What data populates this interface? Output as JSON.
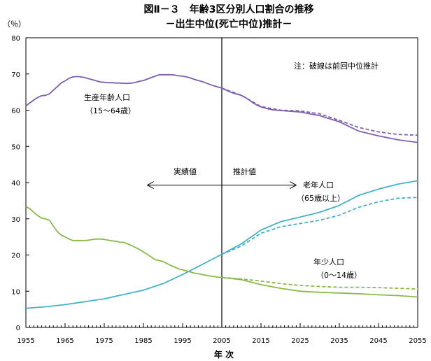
{
  "chart_data": {
    "type": "line",
    "title": "図Ⅱ－３　年齢3区分別人口割合の推移",
    "subtitle": "－出生中位(死亡中位)推計－",
    "ylabel": "（％）",
    "xlabel": "年 次",
    "ylim": [
      0,
      80
    ],
    "xlim": [
      1955,
      2055
    ],
    "yticks": [
      0,
      10,
      20,
      30,
      40,
      50,
      60,
      70,
      80
    ],
    "xticks": [
      1955,
      1965,
      1975,
      1985,
      1995,
      2005,
      2015,
      2025,
      2035,
      2045,
      2055
    ],
    "grid": false,
    "divider_year": 2005,
    "note": "注：破線は前回中位推計",
    "actual_label": "実績値",
    "projection_label": "推計値",
    "colors": {
      "working": "#7e5fb0",
      "elderly": "#44b2c6",
      "young": "#8bb94a"
    },
    "series": [
      {
        "key": "working",
        "label_line1": "生産年齢人口",
        "label_line2": "（15～64歳）",
        "style": "solid",
        "x": [
          1955,
          1956,
          1957,
          1958,
          1959,
          1960,
          1961,
          1962,
          1963,
          1964,
          1965,
          1966,
          1967,
          1968,
          1969,
          1970,
          1971,
          1972,
          1973,
          1974,
          1975,
          1976,
          1977,
          1978,
          1979,
          1980,
          1981,
          1982,
          1983,
          1984,
          1985,
          1986,
          1987,
          1988,
          1989,
          1990,
          1991,
          1992,
          1993,
          1994,
          1995,
          1996,
          1997,
          1998,
          1999,
          2000,
          2001,
          2002,
          2003,
          2004,
          2005,
          2006,
          2007,
          2008,
          2009,
          2010,
          2011,
          2012,
          2013,
          2014,
          2015,
          2016,
          2017,
          2018,
          2019,
          2020,
          2025,
          2030,
          2035,
          2040,
          2045,
          2050,
          2055
        ],
        "y": [
          61.2,
          62.0,
          62.8,
          63.5,
          64.0,
          64.1,
          64.5,
          65.5,
          66.5,
          67.5,
          68.1,
          68.8,
          69.2,
          69.3,
          69.2,
          69.0,
          68.7,
          68.4,
          68.1,
          67.8,
          67.7,
          67.6,
          67.6,
          67.5,
          67.5,
          67.4,
          67.4,
          67.5,
          67.7,
          68.0,
          68.2,
          68.6,
          69.0,
          69.4,
          69.8,
          69.8,
          69.8,
          69.8,
          69.7,
          69.5,
          69.4,
          69.2,
          68.9,
          68.5,
          68.2,
          67.9,
          67.5,
          67.1,
          66.7,
          66.4,
          66.1,
          65.6,
          65.1,
          64.7,
          64.4,
          64.1,
          63.5,
          62.8,
          62.0,
          61.4,
          60.9,
          60.6,
          60.3,
          60.1,
          60.0,
          59.9,
          59.5,
          58.5,
          56.8,
          54.2,
          52.9,
          51.8,
          51.1
        ]
      },
      {
        "key": "working_prev",
        "style": "dashed",
        "color_key": "working",
        "x": [
          2005,
          2010,
          2015,
          2020,
          2025,
          2030,
          2035,
          2040,
          2045,
          2050,
          2055
        ],
        "y": [
          66.1,
          64.1,
          61.0,
          60.0,
          59.8,
          59.0,
          57.2,
          55.2,
          54.0,
          53.3,
          53.1
        ]
      },
      {
        "key": "elderly",
        "label_line1": "老年人口",
        "label_line2": "（65歳以上）",
        "style": "solid",
        "x": [
          1955,
          1960,
          1965,
          1970,
          1975,
          1980,
          1985,
          1990,
          1995,
          2000,
          2005,
          2010,
          2015,
          2020,
          2025,
          2030,
          2035,
          2040,
          2045,
          2050,
          2055
        ],
        "y": [
          5.3,
          5.7,
          6.3,
          7.1,
          7.9,
          9.1,
          10.3,
          12.1,
          14.6,
          17.4,
          20.2,
          23.1,
          26.9,
          29.2,
          30.5,
          31.8,
          33.7,
          36.5,
          38.2,
          39.6,
          40.5
        ]
      },
      {
        "key": "elderly_prev",
        "style": "dashed",
        "color_key": "elderly",
        "x": [
          2005,
          2010,
          2015,
          2020,
          2025,
          2030,
          2035,
          2040,
          2045,
          2050,
          2055
        ],
        "y": [
          20.2,
          22.5,
          26.0,
          27.8,
          28.7,
          29.6,
          31.0,
          33.2,
          34.7,
          35.7,
          35.9
        ]
      },
      {
        "key": "young",
        "label_line1": "年少人口",
        "label_line2": "（0～14歳）",
        "style": "solid",
        "x": [
          1955,
          1956,
          1957,
          1958,
          1959,
          1960,
          1961,
          1962,
          1963,
          1964,
          1965,
          1966,
          1967,
          1968,
          1969,
          1970,
          1971,
          1972,
          1973,
          1974,
          1975,
          1976,
          1977,
          1978,
          1979,
          1980,
          1982,
          1984,
          1986,
          1988,
          1990,
          1992,
          1994,
          1996,
          1998,
          2000,
          2002,
          2004,
          2005,
          2010,
          2015,
          2020,
          2025,
          2030,
          2035,
          2040,
          2045,
          2050,
          2055
        ],
        "y": [
          33.4,
          32.8,
          31.8,
          30.9,
          30.2,
          30.0,
          29.6,
          28.0,
          26.5,
          25.5,
          25.0,
          24.4,
          24.0,
          24.0,
          24.0,
          24.0,
          24.1,
          24.3,
          24.4,
          24.4,
          24.3,
          24.1,
          23.9,
          23.8,
          23.5,
          23.5,
          22.6,
          21.5,
          20.2,
          18.7,
          18.2,
          17.1,
          16.2,
          15.6,
          15.0,
          14.6,
          14.2,
          13.9,
          13.8,
          13.2,
          11.8,
          10.8,
          10.0,
          9.7,
          9.5,
          9.3,
          9.0,
          8.8,
          8.4
        ]
      },
      {
        "key": "young_prev",
        "style": "dashed",
        "color_key": "young",
        "x": [
          2005,
          2010,
          2015,
          2020,
          2025,
          2030,
          2035,
          2040,
          2045,
          2050,
          2055
        ],
        "y": [
          13.8,
          13.4,
          12.8,
          12.1,
          11.6,
          11.3,
          11.1,
          11.1,
          11.0,
          10.8,
          10.6
        ]
      }
    ]
  }
}
